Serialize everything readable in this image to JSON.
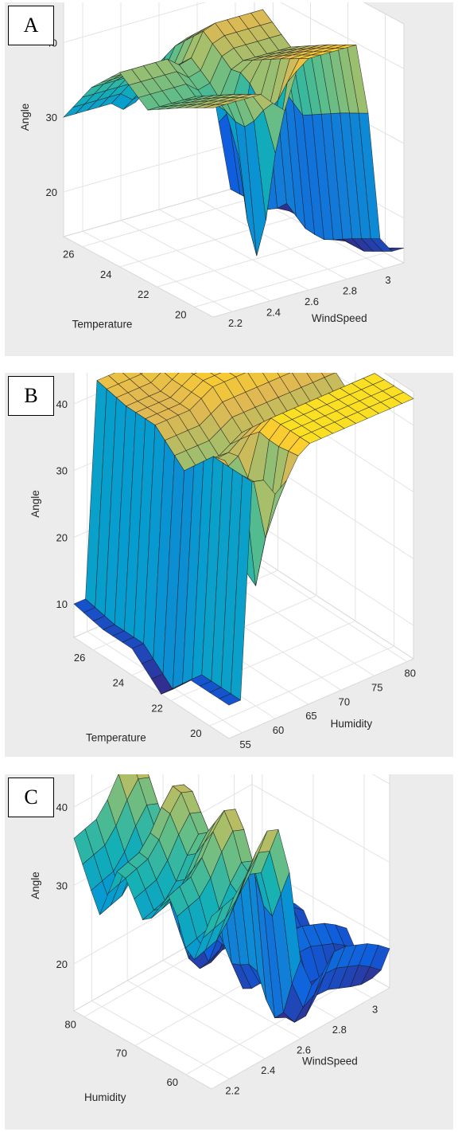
{
  "colors": {
    "background": "#ececec",
    "axes_fill": "#ffffff",
    "box_line": "#d8d8d8",
    "grid_line": "#e3e3e3",
    "tick_text": "#262626"
  },
  "panels": [
    {
      "label": "A",
      "chart_data": {
        "type": "surface",
        "xlabel": "WindSpeed",
        "ylabel": "Temperature",
        "zlabel": "Angle",
        "x_ticks": [
          "2.2",
          "2.4",
          "2.6",
          "2.8",
          "3"
        ],
        "y_ticks": [
          "20",
          "22",
          "24",
          "26"
        ],
        "z_ticks": [
          "20",
          "30",
          "40"
        ],
        "xlim": [
          2.1,
          3.1
        ],
        "ylim": [
          19,
          27
        ],
        "zlim": [
          14,
          46
        ],
        "grid": true,
        "colormap": "parula",
        "x_profile": [
          [
            2.1,
            40
          ],
          [
            2.35,
            40
          ],
          [
            2.45,
            38
          ],
          [
            2.55,
            43
          ],
          [
            2.7,
            43
          ],
          [
            2.9,
            43
          ],
          [
            2.93,
            20
          ],
          [
            3.0,
            14
          ],
          [
            3.1,
            14
          ]
        ],
        "y_profile": [
          [
            19,
            2
          ],
          [
            20.5,
            0
          ],
          [
            22.5,
            -3
          ],
          [
            24,
            0
          ],
          [
            25.5,
            -4
          ],
          [
            27,
            -10
          ]
        ],
        "dip": {
          "x": 2.48,
          "y": 20.5,
          "depth": 22,
          "width_x": 0.05,
          "width_y": 1.0
        }
      }
    },
    {
      "label": "B",
      "chart_data": {
        "type": "surface",
        "xlabel": "Humidity",
        "ylabel": "Temperature",
        "zlabel": "Angle",
        "x_ticks": [
          "55",
          "60",
          "65",
          "70",
          "75",
          "80"
        ],
        "y_ticks": [
          "20",
          "22",
          "24",
          "26"
        ],
        "z_ticks": [
          "10",
          "20",
          "30",
          "40"
        ],
        "xlim": [
          53,
          81
        ],
        "ylim": [
          19,
          27
        ],
        "zlim": [
          5,
          45
        ],
        "grid": true,
        "colormap": "parula",
        "x_profile": [
          [
            53,
            10
          ],
          [
            55,
            10
          ],
          [
            56.5,
            42
          ],
          [
            62,
            42
          ],
          [
            65,
            44
          ],
          [
            70,
            44
          ],
          [
            81,
            44
          ]
        ],
        "y_profile": [
          [
            19,
            0
          ],
          [
            21,
            0
          ],
          [
            22.5,
            -5
          ],
          [
            24,
            -1
          ],
          [
            25.5,
            -1
          ],
          [
            27,
            0
          ]
        ],
        "dip": {
          "x": 60.5,
          "y": 20.2,
          "depth": 22,
          "width_x": 1.6,
          "width_y": 0.9
        }
      }
    },
    {
      "label": "C",
      "chart_data": {
        "type": "surface",
        "xlabel": "WindSpeed",
        "ylabel": "Humidity",
        "zlabel": "Angle",
        "x_ticks": [
          "2.2",
          "2.4",
          "2.6",
          "2.8",
          "3"
        ],
        "y_ticks": [
          "60",
          "70",
          "80"
        ],
        "z_ticks": [
          "20",
          "30",
          "40"
        ],
        "xlim": [
          2.1,
          3.1
        ],
        "ylim": [
          55,
          82
        ],
        "zlim": [
          14,
          46
        ],
        "grid": true,
        "colormap": "parula",
        "x_profile": [
          [
            2.1,
            36
          ],
          [
            2.25,
            37
          ],
          [
            2.4,
            43
          ],
          [
            2.5,
            42
          ],
          [
            2.55,
            34
          ],
          [
            2.62,
            20
          ],
          [
            2.7,
            20
          ],
          [
            2.8,
            23
          ],
          [
            3.0,
            21
          ],
          [
            3.1,
            19
          ]
        ],
        "y_profile": [
          [
            55,
            0
          ],
          [
            59,
            -8
          ],
          [
            63,
            0
          ],
          [
            68,
            -6
          ],
          [
            73,
            0
          ],
          [
            77,
            -8
          ],
          [
            82,
            0
          ]
        ],
        "dip": {
          "x": 2.62,
          "y": 62,
          "depth": 6,
          "width_x": 0.05,
          "width_y": 3.0
        }
      }
    }
  ]
}
